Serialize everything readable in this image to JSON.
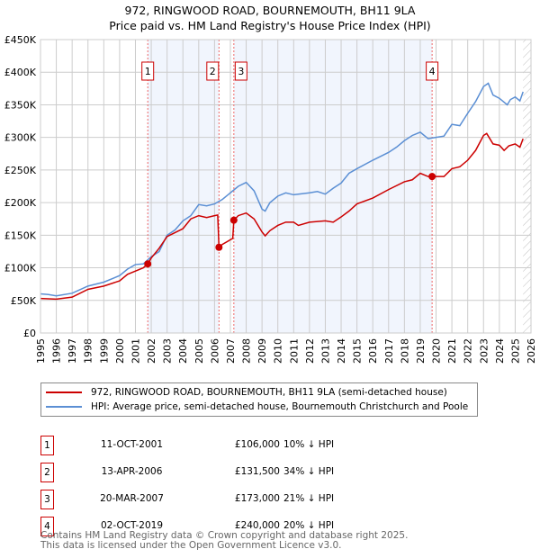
{
  "chart_data": {
    "type": "line",
    "title": "972, RINGWOOD ROAD, BOURNEMOUTH, BH11 9LA",
    "subtitle": "Price paid vs. HM Land Registry's House Price Index (HPI)",
    "xlim": [
      1995,
      2026
    ],
    "ylim": [
      0,
      450000
    ],
    "yticks": [
      0,
      50000,
      100000,
      150000,
      200000,
      250000,
      300000,
      350000,
      400000,
      450000
    ],
    "ytick_labels": [
      "£0",
      "£50K",
      "£100K",
      "£150K",
      "£200K",
      "£250K",
      "£300K",
      "£350K",
      "£400K",
      "£450K"
    ],
    "xticks": [
      "1995",
      "1996",
      "1997",
      "1998",
      "1999",
      "2000",
      "2001",
      "2002",
      "2003",
      "2004",
      "2005",
      "2006",
      "2007",
      "2008",
      "2009",
      "2010",
      "2011",
      "2012",
      "2013",
      "2014",
      "2015",
      "2016",
      "2017",
      "2018",
      "2019",
      "2020",
      "2021",
      "2022",
      "2023",
      "2024",
      "2025",
      "2026"
    ],
    "grid": true,
    "series": [
      {
        "name": "972, RINGWOOD ROAD, BOURNEMOUTH, BH11 9LA (semi-detached house)",
        "color": "#cc0000",
        "x": [
          1995,
          1996,
          1997,
          1998,
          1999,
          2000,
          2000.5,
          2001,
          2001.5,
          2001.78,
          2002,
          2002.5,
          2003,
          2004,
          2004.5,
          2005,
          2005.5,
          2006,
          2006.2,
          2006.28,
          2006.5,
          2007,
          2007.15,
          2007.22,
          2007.5,
          2008,
          2008.5,
          2009,
          2009.2,
          2009.5,
          2010,
          2010.5,
          2011,
          2011.3,
          2012,
          2013,
          2013.5,
          2014,
          2014.5,
          2015,
          2016,
          2017,
          2018,
          2018.5,
          2019,
          2019.5,
          2019.75,
          2020.5,
          2021,
          2021.5,
          2022,
          2022.5,
          2023,
          2023.2,
          2023.6,
          2024,
          2024.3,
          2024.6,
          2025,
          2025.3,
          2025.5
        ],
        "y": [
          53,
          52,
          55,
          67,
          72,
          80,
          90,
          95,
          100,
          106,
          115,
          130,
          148,
          160,
          175,
          180,
          177,
          180,
          181,
          131.5,
          136,
          143,
          145,
          173,
          180,
          184,
          175,
          155,
          149,
          157,
          165,
          170,
          170,
          165,
          170,
          172,
          170,
          178,
          187,
          198,
          207,
          220,
          232,
          235,
          245,
          240,
          240,
          240,
          252,
          255,
          265,
          280,
          303,
          306,
          290,
          288,
          280,
          287,
          290,
          285,
          298
        ]
      },
      {
        "name": "HPI: Average price, semi-detached house, Bournemouth Christchurch and Poole",
        "color": "#5b8fd4",
        "x": [
          1995,
          1995.5,
          1996,
          1997,
          1998,
          1999,
          2000,
          2000.5,
          2001,
          2001.5,
          2002,
          2002.5,
          2003,
          2003.5,
          2004,
          2004.5,
          2005,
          2005.5,
          2006,
          2006.5,
          2007,
          2007.5,
          2008,
          2008.5,
          2009,
          2009.2,
          2009.5,
          2010,
          2010.5,
          2011,
          2012,
          2012.5,
          2013,
          2013.5,
          2014,
          2014.5,
          2015,
          2016,
          2017,
          2017.5,
          2018,
          2018.5,
          2019,
          2019.5,
          2020,
          2020.5,
          2021,
          2021.5,
          2022,
          2022.5,
          2023,
          2023.3,
          2023.6,
          2024,
          2024.5,
          2024.7,
          2025,
          2025.3,
          2025.5
        ],
        "y": [
          60,
          59,
          57,
          61,
          72,
          78,
          88,
          98,
          105,
          106,
          117,
          125,
          150,
          158,
          172,
          180,
          197,
          195,
          198,
          205,
          215,
          225,
          231,
          218,
          190,
          187,
          200,
          210,
          215,
          212,
          215,
          217,
          213,
          222,
          230,
          245,
          252,
          265,
          277,
          285,
          295,
          303,
          308,
          298,
          300,
          302,
          320,
          318,
          337,
          355,
          378,
          383,
          365,
          360,
          350,
          358,
          362,
          356,
          370
        ]
      }
    ],
    "y_units": "thousands GBP",
    "sales": [
      {
        "num": "1",
        "x": 2001.78,
        "y": 106,
        "date": "11-OCT-2001",
        "price": "£106,000",
        "hpi": "10% ↓ HPI"
      },
      {
        "num": "2",
        "x": 2006.28,
        "y": 131.5,
        "date": "13-APR-2006",
        "price": "£131,500",
        "hpi": "34% ↓ HPI"
      },
      {
        "num": "3",
        "x": 2007.22,
        "y": 173,
        "date": "20-MAR-2007",
        "price": "£173,000",
        "hpi": "21% ↓ HPI"
      },
      {
        "num": "4",
        "x": 2019.75,
        "y": 240,
        "date": "02-OCT-2019",
        "price": "£240,000",
        "hpi": "20% ↓ HPI"
      }
    ],
    "shaded_ranges": [
      [
        2001.78,
        2006.28
      ],
      [
        2007.22,
        2019.75
      ]
    ],
    "hatched_from": 2025.5
  },
  "footer": {
    "line1": "Contains HM Land Registry data © Crown copyright and database right 2025.",
    "line2": "This data is licensed under the Open Government Licence v3.0."
  }
}
